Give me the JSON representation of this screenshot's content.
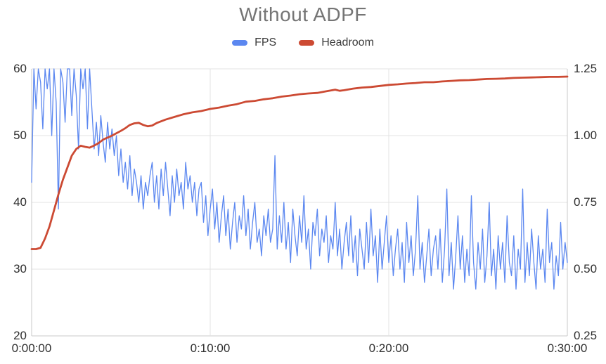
{
  "title": "Without ADPF",
  "legend": {
    "items": [
      {
        "label": "FPS",
        "color": "#5b87f0"
      },
      {
        "label": "Headroom",
        "color": "#cc4a33"
      }
    ]
  },
  "chart_data": {
    "type": "line",
    "title": "Without ADPF",
    "legend_position": "top",
    "grid": true,
    "background": "#ffffff",
    "grid_color": "#e3e3e3",
    "frame_color": "#c8c8c8",
    "x_axis": {
      "label": "",
      "ticks": [
        "0:00:00",
        "0:10:00",
        "0:20:00",
        "0:30:00"
      ],
      "range_seconds": [
        0,
        1800
      ]
    },
    "left_axis": {
      "series": "FPS",
      "ticks": [
        "60",
        "50",
        "40",
        "30",
        "20"
      ],
      "range": [
        20,
        60
      ]
    },
    "right_axis": {
      "series": "Headroom",
      "ticks": [
        "1.25",
        "1.00",
        "0.75",
        "0.50",
        "0.25"
      ],
      "range": [
        0.25,
        1.25
      ]
    },
    "series": [
      {
        "name": "FPS",
        "axis": "left",
        "color": "#5b87f0",
        "stroke_width": 1.3,
        "sampling": {
          "t_start": 0,
          "t_step_seconds": 7.5
        },
        "values": [
          43,
          60,
          54,
          60,
          58,
          51,
          60,
          57,
          60,
          50,
          60,
          55,
          39,
          60,
          58,
          52,
          60,
          60,
          53,
          60,
          56,
          48,
          60,
          57,
          60,
          51,
          60,
          54,
          48,
          52,
          47,
          53,
          49,
          46,
          52,
          48,
          51,
          47,
          50,
          44,
          48,
          43,
          46,
          42,
          47,
          41,
          45,
          43,
          40,
          44,
          39,
          43,
          41,
          44,
          46,
          40,
          44,
          39,
          45,
          41,
          46,
          42,
          38,
          44,
          40,
          45,
          41,
          43,
          39,
          46,
          42,
          44,
          40,
          43,
          38,
          42,
          43,
          37,
          41,
          35,
          39,
          42,
          36,
          40,
          34,
          38,
          41,
          35,
          39,
          33,
          37,
          40,
          34,
          38,
          36,
          41,
          35,
          39,
          33,
          37,
          40,
          34,
          36,
          32,
          38,
          35,
          39,
          34,
          36,
          47,
          33,
          38,
          34,
          40,
          33,
          37,
          31,
          39,
          35,
          32,
          38,
          34,
          41,
          33,
          36,
          30,
          37,
          35,
          39,
          32,
          36,
          34,
          38,
          31,
          35,
          33,
          40,
          32,
          36,
          30,
          34,
          37,
          32,
          38,
          31,
          35,
          29,
          36,
          33,
          30,
          37,
          31,
          39,
          32,
          35,
          28,
          36,
          30,
          34,
          38,
          31,
          35,
          29,
          33,
          36,
          30,
          34,
          28,
          37,
          31,
          35,
          29,
          33,
          41,
          30,
          34,
          28,
          32,
          36,
          29,
          33,
          35,
          30,
          36,
          28,
          33,
          42,
          29,
          34,
          27,
          32,
          38,
          30,
          35,
          28,
          33,
          29,
          41,
          31,
          27,
          34,
          30,
          36,
          28,
          32,
          40,
          29,
          33,
          27,
          35,
          30,
          34,
          28,
          38,
          31,
          29,
          35,
          27,
          33,
          30,
          42,
          28,
          34,
          29,
          36,
          31,
          27,
          35,
          30,
          33,
          28,
          39,
          31,
          34,
          27,
          32,
          29,
          37,
          30,
          34,
          31
        ]
      },
      {
        "name": "Headroom",
        "axis": "right",
        "color": "#cc4a33",
        "stroke_width": 2.8,
        "points": [
          [
            0,
            0.575
          ],
          [
            15,
            0.575
          ],
          [
            30,
            0.58
          ],
          [
            45,
            0.615
          ],
          [
            60,
            0.66
          ],
          [
            75,
            0.72
          ],
          [
            90,
            0.78
          ],
          [
            105,
            0.835
          ],
          [
            120,
            0.88
          ],
          [
            135,
            0.925
          ],
          [
            150,
            0.95
          ],
          [
            165,
            0.962
          ],
          [
            180,
            0.958
          ],
          [
            195,
            0.955
          ],
          [
            210,
            0.963
          ],
          [
            225,
            0.972
          ],
          [
            240,
            0.985
          ],
          [
            270,
            1.0
          ],
          [
            300,
            1.018
          ],
          [
            315,
            1.028
          ],
          [
            330,
            1.04
          ],
          [
            345,
            1.046
          ],
          [
            360,
            1.048
          ],
          [
            375,
            1.04
          ],
          [
            390,
            1.035
          ],
          [
            405,
            1.038
          ],
          [
            420,
            1.047
          ],
          [
            450,
            1.06
          ],
          [
            480,
            1.07
          ],
          [
            510,
            1.08
          ],
          [
            540,
            1.087
          ],
          [
            570,
            1.092
          ],
          [
            600,
            1.1
          ],
          [
            630,
            1.105
          ],
          [
            660,
            1.112
          ],
          [
            690,
            1.118
          ],
          [
            720,
            1.127
          ],
          [
            750,
            1.13
          ],
          [
            780,
            1.136
          ],
          [
            810,
            1.14
          ],
          [
            840,
            1.146
          ],
          [
            870,
            1.15
          ],
          [
            900,
            1.155
          ],
          [
            930,
            1.158
          ],
          [
            960,
            1.16
          ],
          [
            990,
            1.166
          ],
          [
            1020,
            1.172
          ],
          [
            1035,
            1.168
          ],
          [
            1050,
            1.17
          ],
          [
            1080,
            1.176
          ],
          [
            1110,
            1.18
          ],
          [
            1140,
            1.182
          ],
          [
            1170,
            1.186
          ],
          [
            1200,
            1.19
          ],
          [
            1230,
            1.192
          ],
          [
            1260,
            1.195
          ],
          [
            1290,
            1.197
          ],
          [
            1320,
            1.2
          ],
          [
            1350,
            1.2
          ],
          [
            1380,
            1.203
          ],
          [
            1410,
            1.205
          ],
          [
            1440,
            1.207
          ],
          [
            1470,
            1.208
          ],
          [
            1500,
            1.21
          ],
          [
            1530,
            1.212
          ],
          [
            1560,
            1.213
          ],
          [
            1590,
            1.214
          ],
          [
            1620,
            1.216
          ],
          [
            1650,
            1.217
          ],
          [
            1680,
            1.218
          ],
          [
            1710,
            1.219
          ],
          [
            1740,
            1.22
          ],
          [
            1770,
            1.22
          ],
          [
            1800,
            1.221
          ]
        ]
      }
    ]
  }
}
